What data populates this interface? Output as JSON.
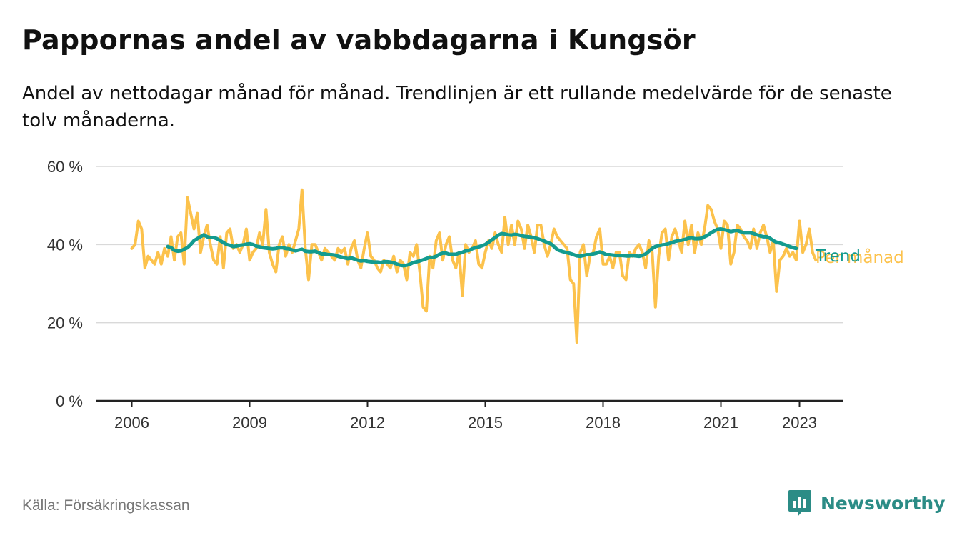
{
  "header": {
    "title": "Pappornas andel av vabbdagarna i Kungsör",
    "subtitle": "Andel av nettodagar månad för månad. Trendlinjen är ett rullande medelvärde för de senaste tolv månaderna."
  },
  "footer": {
    "source": "Källa: Försäkringskassan",
    "brand": "Newsworthy",
    "brand_icon": "bar-chart-icon",
    "brand_color": "#2b8c86"
  },
  "chart_data": {
    "type": "line",
    "x_start": 2006.0,
    "x_step_months": 1,
    "xlim": [
      2005.1,
      2024.1
    ],
    "ylim": [
      0,
      60
    ],
    "y_ticks": [
      0,
      20,
      40,
      60
    ],
    "y_tick_labels": [
      "0 %",
      "20 %",
      "40 %",
      "60 %"
    ],
    "x_ticks": [
      2006,
      2009,
      2012,
      2015,
      2018,
      2021,
      2023
    ],
    "x_tick_labels": [
      "2006",
      "2009",
      "2012",
      "2015",
      "2018",
      "2021",
      "2023"
    ],
    "grid": "horizontal",
    "series": [
      {
        "name": "Per månad",
        "color": "#fcc24c",
        "values": [
          39,
          40,
          46,
          44,
          34,
          37,
          36,
          35,
          38,
          35,
          39,
          37,
          42,
          36,
          42,
          43,
          35,
          52,
          48,
          44,
          48,
          38,
          42,
          45,
          40,
          36,
          35,
          42,
          34,
          43,
          44,
          39,
          40,
          38,
          40,
          44,
          36,
          38,
          39,
          43,
          40,
          49,
          38,
          35,
          33,
          40,
          42,
          37,
          40,
          38,
          41,
          44,
          54,
          39,
          31,
          40,
          40,
          38,
          36,
          39,
          38,
          37,
          36,
          39,
          38,
          39,
          35,
          39,
          41,
          36,
          34,
          39,
          43,
          37,
          36,
          34,
          33,
          36,
          35,
          34,
          37,
          33,
          36,
          35,
          31,
          38,
          37,
          40,
          33,
          24,
          23,
          37,
          34,
          41,
          43,
          36,
          40,
          42,
          36,
          34,
          38,
          27,
          40,
          38,
          39,
          41,
          35,
          34,
          38,
          41,
          39,
          43,
          40,
          38,
          47,
          40,
          45,
          40,
          46,
          44,
          39,
          45,
          42,
          38,
          45,
          45,
          40,
          37,
          40,
          44,
          42,
          41,
          40,
          39,
          31,
          30,
          15,
          38,
          40,
          32,
          37,
          38,
          42,
          44,
          35,
          35,
          37,
          34,
          38,
          38,
          32,
          31,
          38,
          37,
          39,
          40,
          38,
          34,
          41,
          38,
          24,
          37,
          43,
          44,
          36,
          42,
          44,
          41,
          38,
          46,
          40,
          45,
          38,
          43,
          40,
          44,
          50,
          49,
          46,
          44,
          39,
          46,
          45,
          35,
          38,
          45,
          44,
          42,
          41,
          39,
          44,
          39,
          43,
          45,
          42,
          38,
          41,
          28,
          36,
          37,
          39,
          37,
          38,
          36,
          46,
          38,
          40,
          44,
          38,
          36
        ]
      },
      {
        "name": "Trend",
        "color": "#139b8f",
        "start_index": 11,
        "values": [
          39.5,
          39.2,
          38.5,
          38.3,
          38.4,
          38.8,
          39.2,
          40.0,
          41.0,
          41.5,
          42.0,
          42.5,
          42.0,
          41.8,
          41.8,
          41.5,
          41.0,
          40.5,
          40.0,
          39.8,
          39.5,
          39.6,
          39.8,
          39.9,
          40.1,
          40.2,
          40.0,
          39.6,
          39.4,
          39.2,
          39.1,
          39.0,
          38.9,
          39.0,
          39.2,
          39.2,
          39.0,
          38.9,
          38.6,
          38.4,
          38.6,
          38.8,
          38.3,
          38.2,
          38.2,
          38.3,
          37.9,
          37.6,
          37.6,
          37.4,
          37.4,
          37.3,
          37.0,
          36.8,
          36.6,
          36.4,
          36.6,
          36.3,
          36.0,
          35.8,
          35.9,
          35.7,
          35.6,
          35.5,
          35.5,
          35.4,
          35.6,
          35.6,
          35.5,
          35.3,
          35.0,
          34.7,
          34.6,
          34.7,
          35.0,
          35.4,
          35.6,
          35.8,
          36.1,
          36.4,
          36.7,
          36.7,
          37.0,
          37.5,
          37.8,
          37.8,
          37.5,
          37.5,
          37.5,
          37.8,
          38.0,
          38.4,
          38.5,
          38.9,
          39.2,
          39.4,
          39.7,
          40.0,
          40.6,
          41.2,
          41.8,
          42.4,
          42.8,
          42.7,
          42.5,
          42.4,
          42.6,
          42.5,
          42.3,
          42.1,
          42.0,
          41.9,
          41.7,
          41.5,
          41.2,
          40.9,
          40.5,
          40.2,
          39.5,
          38.7,
          38.4,
          38.1,
          37.9,
          37.7,
          37.4,
          37.1,
          37.0,
          37.2,
          37.4,
          37.4,
          37.6,
          37.8,
          38.1,
          37.8,
          37.4,
          37.4,
          37.3,
          37.2,
          37.2,
          37.2,
          37.1,
          37.1,
          37.2,
          37.1,
          37.0,
          37.2,
          37.6,
          38.3,
          39.0,
          39.5,
          39.7,
          39.9,
          40.0,
          40.2,
          40.5,
          40.8,
          41.0,
          41.1,
          41.3,
          41.6,
          41.7,
          41.5,
          41.5,
          41.6,
          42.0,
          42.4,
          43.0,
          43.5,
          43.9,
          44.0,
          43.8,
          43.6,
          43.3,
          43.5,
          43.6,
          43.3,
          43.0,
          43.0,
          43.0,
          42.8,
          42.5,
          42.2,
          42.0,
          42.0,
          41.6,
          41.0,
          40.6,
          40.4,
          40.1,
          39.8,
          39.5,
          39.2,
          39.0
        ]
      }
    ]
  }
}
